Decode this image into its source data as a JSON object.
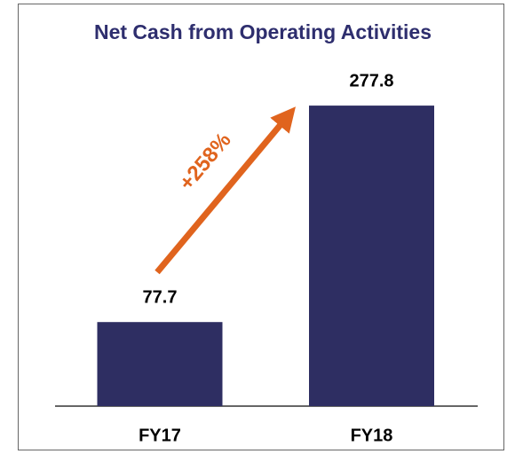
{
  "chart_data": {
    "type": "bar",
    "title": "Net Cash from Operating Activities",
    "categories": [
      "FY17",
      "FY18"
    ],
    "values": [
      77.7,
      277.8
    ],
    "color": "#2e2e62",
    "annotation": "+258%",
    "annotation_color": "#e0641e"
  }
}
